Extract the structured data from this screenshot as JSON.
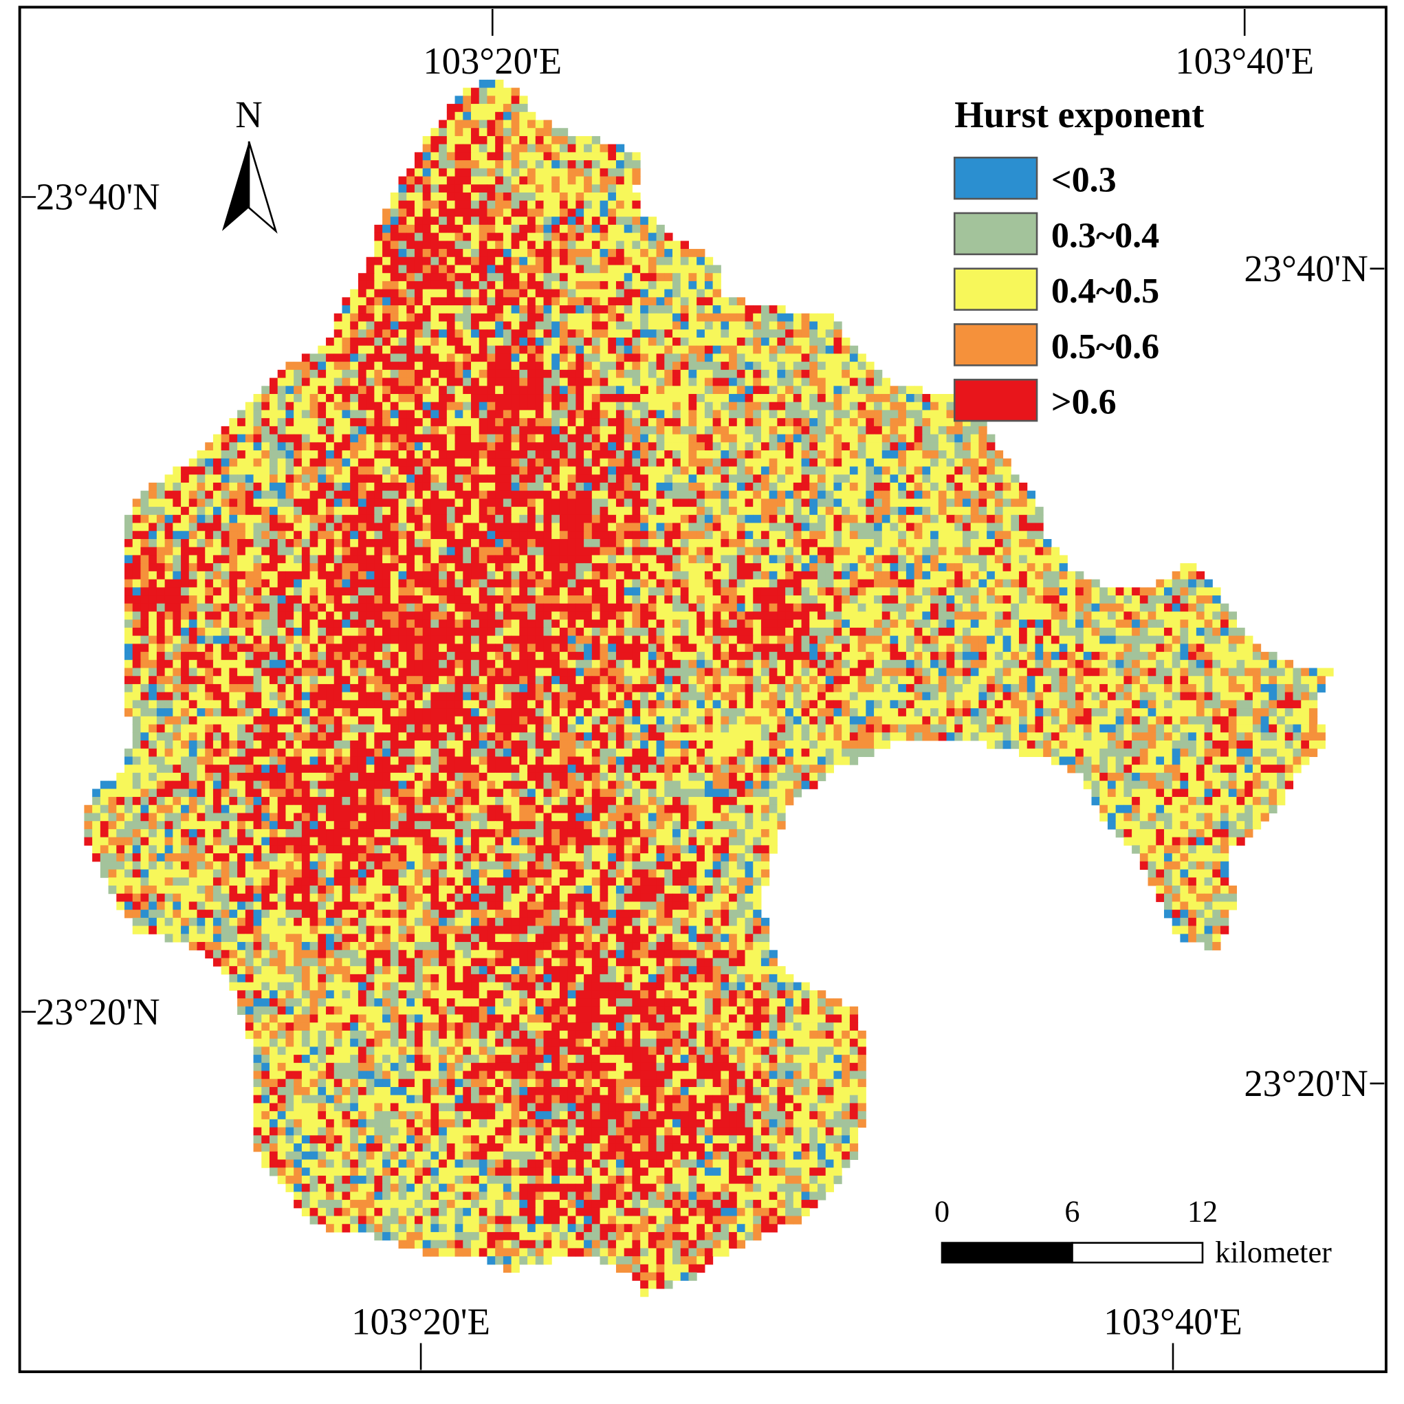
{
  "map": {
    "legend": {
      "title": "Hurst  exponent",
      "items": [
        {
          "label": "<0.3",
          "color": "#2b8fd0"
        },
        {
          "label": "0.3~0.4",
          "color": "#a3c39b"
        },
        {
          "label": "0.4~0.5",
          "color": "#f7f75a"
        },
        {
          "label": "0.5~0.6",
          "color": "#f5913b"
        },
        {
          "label": ">0.6",
          "color": "#e8151b"
        }
      ]
    },
    "north_arrow": "N",
    "graticule": {
      "top": [
        "103°20'E",
        "103°40'E"
      ],
      "bottom": [
        "103°20'E",
        "103°40'E"
      ],
      "left": [
        "23°40'N",
        "23°20'N"
      ],
      "right": [
        "23°40'N",
        "23°20'N"
      ]
    },
    "scale_bar": {
      "ticks": [
        0,
        6,
        12
      ],
      "unit": "kilometer"
    }
  }
}
